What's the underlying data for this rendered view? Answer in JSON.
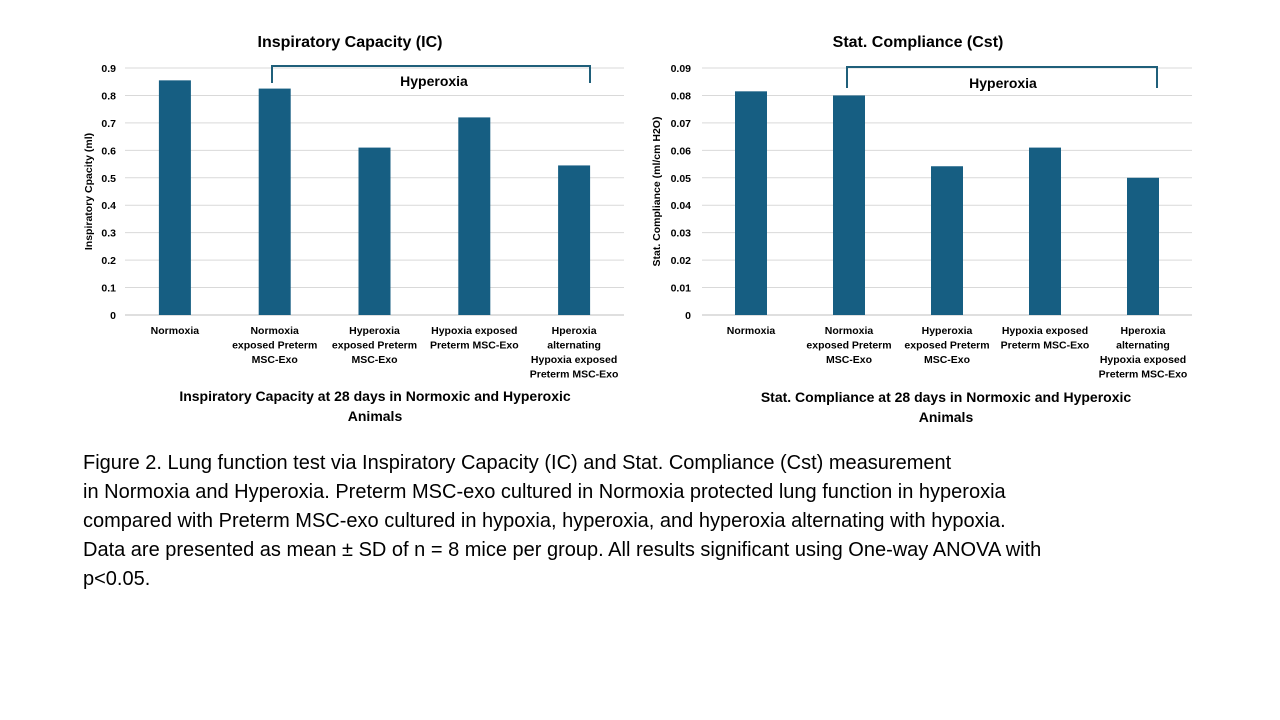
{
  "chart_data": [
    {
      "type": "bar",
      "title": "Inspiratory Capacity (IC)",
      "ylabel": "Inspiratory Cpacity (ml)",
      "categories": [
        [
          "Normoxia"
        ],
        [
          "Normoxia",
          "exposed Preterm",
          "MSC-Exo"
        ],
        [
          "Hyperoxia",
          "exposed Preterm",
          "MSC-Exo"
        ],
        [
          "Hypoxia exposed",
          "Preterm MSC-Exo"
        ],
        [
          "Hperoxia",
          "alternating",
          "Hypoxia exposed",
          "Preterm MSC-Exo"
        ]
      ],
      "values": [
        0.855,
        0.825,
        0.61,
        0.72,
        0.545
      ],
      "ylim": [
        0,
        0.9
      ],
      "yticks": [
        "0",
        "0.1",
        "0.2",
        "0.3",
        "0.4",
        "0.5",
        "0.6",
        "0.7",
        "0.8",
        "0.9"
      ],
      "bracket_label": "Hyperoxia",
      "caption": [
        "Inspiratory Capacity at 28 days in Normoxic and Hyperoxic",
        "Animals"
      ],
      "grid": true,
      "bar_color": "#165e82"
    },
    {
      "type": "bar",
      "title": "Stat. Compliance (Cst)",
      "ylabel": "Stat. Compliance (ml/cm H2O)",
      "categories": [
        [
          "Normoxia"
        ],
        [
          "Normoxia",
          "exposed Preterm",
          "MSC-Exo"
        ],
        [
          "Hyperoxia",
          "exposed Preterm",
          "MSC-Exo"
        ],
        [
          "Hypoxia exposed",
          "Preterm MSC-Exo"
        ],
        [
          "Hperoxia",
          "alternating",
          "Hypoxia exposed",
          "Preterm MSC-Exo"
        ]
      ],
      "values": [
        0.0815,
        0.08,
        0.0542,
        0.061,
        0.05
      ],
      "ylim": [
        0,
        0.09
      ],
      "yticks": [
        "0",
        "0.01",
        "0.02",
        "0.03",
        "0.04",
        "0.05",
        "0.06",
        "0.07",
        "0.08",
        "0.09"
      ],
      "bracket_label": "Hyperoxia",
      "caption": [
        "Stat. Compliance at 28 days in Normoxic and Hyperoxic",
        "Animals"
      ],
      "grid": true,
      "bar_color": "#165e82"
    }
  ],
  "figure_caption": {
    "lines": [
      "Figure 2. Lung function test via Inspiratory Capacity (IC) and Stat. Compliance (Cst) measurement",
      "in Normoxia and Hyperoxia. Preterm MSC-exo cultured in Normoxia protected lung function in hyperoxia",
      "compared with Preterm MSC-exo cultured in hypoxia, hyperoxia, and hyperoxia alternating with hypoxia.",
      "Data are presented as mean ± SD of n = 8 mice per group.  All results significant using One-way ANOVA with",
      "p<0.05."
    ]
  }
}
